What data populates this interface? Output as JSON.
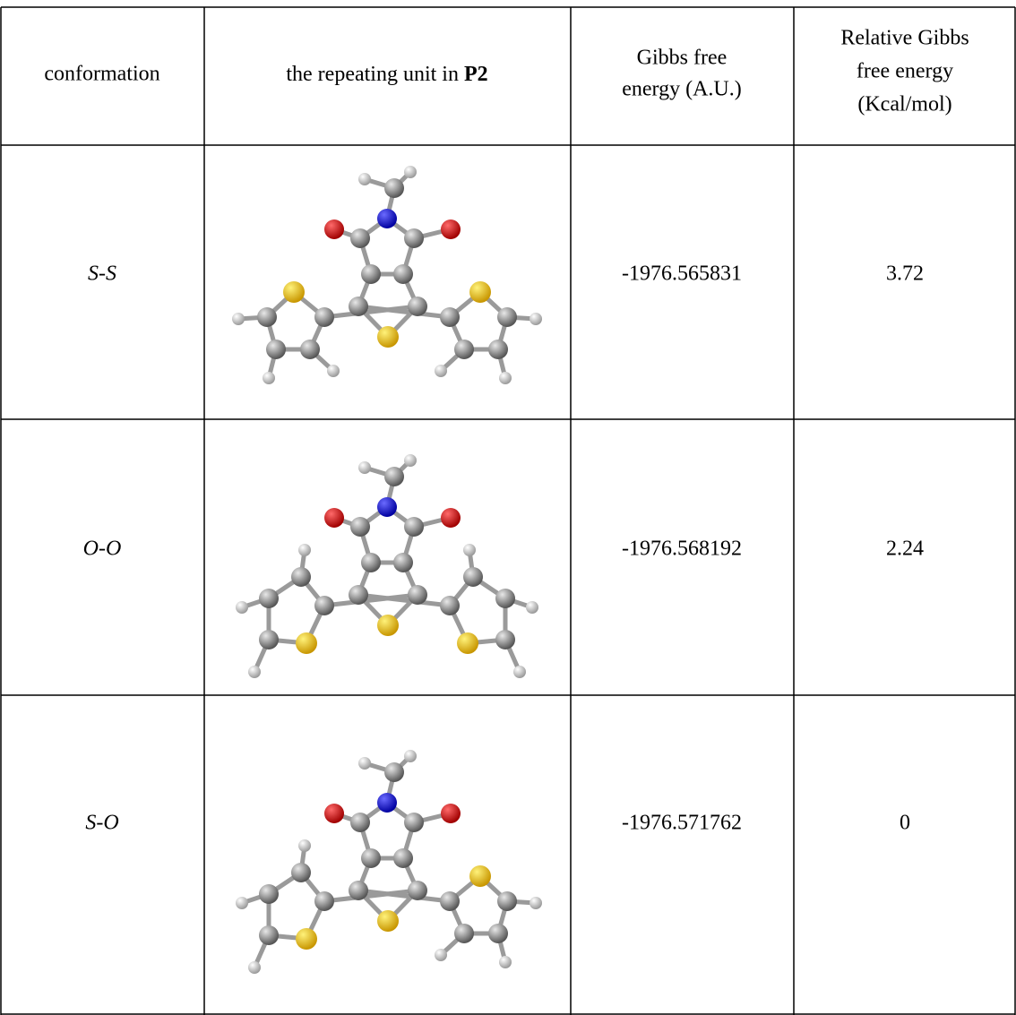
{
  "table": {
    "header": {
      "conformation": "conformation",
      "unit": {
        "text": "the repeating unit in",
        "bold": "P2"
      },
      "gibbs": [
        "Gibbs free",
        "energy (A.U.)"
      ],
      "relative": [
        "Relative Gibbs",
        "free energy",
        "(Kcal/mol)"
      ]
    },
    "rows": [
      [
        "S-S",
        "-1976.565831",
        "3.72"
      ],
      [
        "O-O",
        "-1976.568192",
        "2.24"
      ],
      [
        "S-O",
        "-1976.571762",
        "0"
      ]
    ]
  }
}
